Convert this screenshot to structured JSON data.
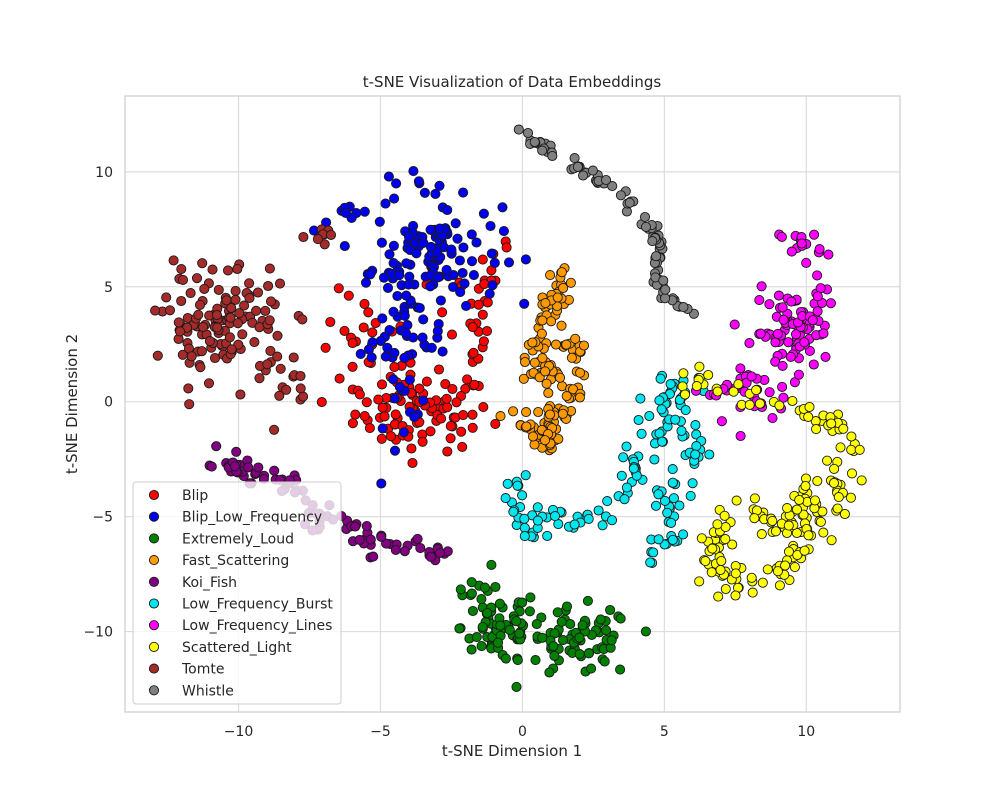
{
  "chart_data": {
    "type": "scatter",
    "title": "t-SNE Visualization of Data Embeddings",
    "xlabel": "t-SNE Dimension 1",
    "ylabel": "t-SNE Dimension 2",
    "xlim": [
      -14,
      13.3
    ],
    "ylim": [
      -13.5,
      13.3
    ],
    "xticks": [
      -10,
      -5,
      0,
      5,
      10
    ],
    "yticks": [
      -10,
      -5,
      0,
      5,
      10
    ],
    "grid": true,
    "legend_position": "lower-left",
    "series": [
      {
        "name": "Blip",
        "color": "#ff0000",
        "clusters": [
          [
            -3.5,
            -0.5,
            1.6,
            1.1,
            85
          ],
          [
            -5.5,
            2.0,
            1.1,
            1.8,
            30
          ],
          [
            -2.0,
            3.5,
            0.8,
            2.0,
            25
          ],
          [
            -1.0,
            6.5,
            0.5,
            1.5,
            8
          ]
        ]
      },
      {
        "name": "Blip_Low_Frequency",
        "color": "#0000ee",
        "clusters": [
          [
            -3.0,
            6.5,
            1.5,
            1.5,
            100
          ],
          [
            -4.2,
            2.8,
            1.0,
            2.5,
            65
          ],
          [
            -4.0,
            9.3,
            0.8,
            0.5,
            10
          ],
          [
            -6.0,
            8.0,
            0.9,
            0.4,
            8
          ]
        ]
      },
      {
        "name": "Extremely_Loud",
        "color": "#008000",
        "clusters": [
          [
            -0.8,
            -9.8,
            0.9,
            1.1,
            65
          ],
          [
            2.0,
            -10.5,
            1.3,
            1.0,
            75
          ],
          [
            -1.8,
            -8.0,
            0.5,
            0.4,
            8
          ]
        ]
      },
      {
        "name": "Fast_Scattering",
        "color": "#ff9900",
        "path": [
          [
            1.4,
            5.6
          ],
          [
            1.2,
            4.5
          ],
          [
            0.6,
            3.2
          ],
          [
            0.4,
            1.8
          ],
          [
            0.9,
            0.8
          ],
          [
            1.8,
            2.6
          ],
          [
            2.0,
            1.5
          ],
          [
            1.7,
            0.0
          ],
          [
            1.0,
            -1.0
          ],
          [
            0.6,
            -2.0
          ],
          [
            1.1,
            -1.3
          ],
          [
            0.1,
            -0.8
          ],
          [
            -0.3,
            -0.5
          ]
        ],
        "noise": 0.25,
        "count": 160
      },
      {
        "name": "Koi_Fish",
        "color": "#800080",
        "path": [
          [
            -10.0,
            -1.8
          ],
          [
            -10.5,
            -2.8
          ],
          [
            -9.5,
            -3.2
          ],
          [
            -8.0,
            -3.5
          ],
          [
            -7.5,
            -4.8
          ],
          [
            -6.0,
            -5.5
          ],
          [
            -5.0,
            -6.5
          ],
          [
            -4.0,
            -6.5
          ],
          [
            -3.0,
            -6.4
          ],
          [
            -2.7,
            -6.8
          ]
        ],
        "noise": 0.28,
        "count": 90
      },
      {
        "name": "Low_Frequency_Burst",
        "color": "#00e5ee",
        "path": [
          [
            -0.2,
            -3.3
          ],
          [
            -0.3,
            -4.5
          ],
          [
            0.5,
            -5.5
          ],
          [
            1.5,
            -5.0
          ],
          [
            2.5,
            -5.3
          ],
          [
            3.2,
            -4.5
          ],
          [
            3.8,
            -4.2
          ],
          [
            4.0,
            -3.0
          ],
          [
            4.4,
            -1.8
          ],
          [
            4.8,
            -0.5
          ],
          [
            5.2,
            0.8
          ],
          [
            5.6,
            -1.5
          ],
          [
            6.0,
            -2.2
          ],
          [
            5.2,
            -4.0
          ],
          [
            5.3,
            -5.5
          ],
          [
            4.8,
            -6.3
          ],
          [
            4.4,
            -7.2
          ]
        ],
        "noise": 0.3,
        "count": 150
      },
      {
        "name": "Low_Frequency_Lines",
        "color": "#ff00ff",
        "clusters": [
          [
            9.5,
            3.0,
            0.9,
            1.2,
            75
          ],
          [
            8.3,
            0.2,
            0.6,
            0.8,
            25
          ],
          [
            9.8,
            6.8,
            0.5,
            0.5,
            15
          ],
          [
            10.5,
            4.5,
            0.4,
            0.6,
            12
          ],
          [
            6.6,
            0.5,
            0.7,
            0.2,
            8
          ]
        ]
      },
      {
        "name": "Scattered_Light",
        "color": "#ffff00",
        "path": [
          [
            5.4,
            0.8
          ],
          [
            10.8,
            -0.6
          ],
          [
            11.5,
            -2.0
          ],
          [
            11.2,
            -4.0
          ],
          [
            10.5,
            -5.0
          ],
          [
            9.8,
            -6.5
          ],
          [
            9.2,
            -7.2
          ],
          [
            8.5,
            -7.8
          ],
          [
            7.5,
            -8.0
          ],
          [
            6.7,
            -7.0
          ],
          [
            6.9,
            -6.0
          ],
          [
            7.3,
            -5.0
          ],
          [
            8.0,
            -4.5
          ],
          [
            8.7,
            -5.2
          ],
          [
            9.5,
            -5.8
          ],
          [
            10.0,
            -3.8
          ],
          [
            10.8,
            -4.5
          ]
        ],
        "noise": 0.3,
        "count": 190
      },
      {
        "name": "Tomte",
        "color": "#a52a2a",
        "clusters": [
          [
            -10.5,
            3.5,
            1.4,
            1.6,
            125
          ],
          [
            -8.3,
            0.5,
            0.6,
            0.9,
            15
          ],
          [
            -7.2,
            7.2,
            0.4,
            0.2,
            8
          ]
        ]
      },
      {
        "name": "Whistle",
        "color": "#808080",
        "path": [
          [
            -0.3,
            12.0
          ],
          [
            0.8,
            11.0
          ],
          [
            2.0,
            10.2
          ],
          [
            3.0,
            9.5
          ],
          [
            3.8,
            8.5
          ],
          [
            4.5,
            7.7
          ],
          [
            4.8,
            6.5
          ],
          [
            4.7,
            5.3
          ],
          [
            5.2,
            4.3
          ],
          [
            6.0,
            3.9
          ]
        ],
        "noise": 0.12,
        "count": 90
      }
    ]
  }
}
